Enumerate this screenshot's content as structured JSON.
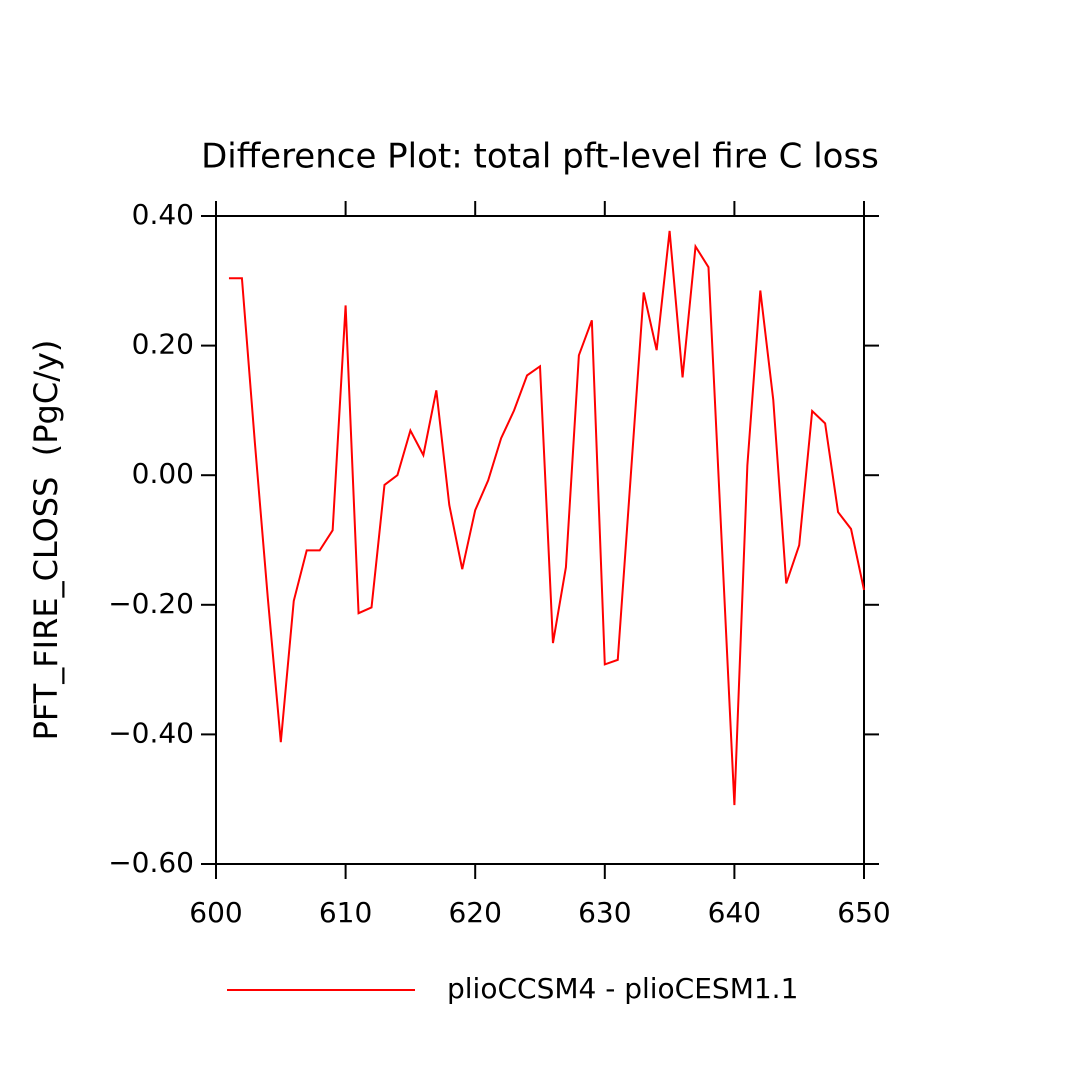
{
  "chart_data": {
    "type": "line",
    "title": "Difference Plot: total pft-level fire C loss",
    "y_label": "PFT_FIRE_CLOSS  (PgC/y)",
    "x": [
      601,
      602,
      603,
      604,
      605,
      606,
      607,
      608,
      609,
      610,
      611,
      612,
      613,
      614,
      615,
      616,
      617,
      618,
      619,
      620,
      621,
      622,
      623,
      624,
      625,
      626,
      627,
      628,
      629,
      630,
      631,
      632,
      633,
      634,
      635,
      636,
      637,
      638,
      639,
      640,
      641,
      642,
      643,
      644,
      645,
      646,
      647,
      648,
      649,
      650
    ],
    "series": [
      {
        "name": "plioCCSM4 - plioCESM1.1",
        "color": "#ff0000",
        "values": [
          0.304,
          0.304,
          0.05,
          -0.19,
          -0.412,
          -0.194,
          -0.116,
          -0.116,
          -0.085,
          0.262,
          -0.213,
          -0.204,
          -0.015,
          0.0,
          0.069,
          0.031,
          0.131,
          -0.046,
          -0.145,
          -0.054,
          -0.008,
          0.057,
          0.1,
          0.154,
          0.168,
          -0.259,
          -0.142,
          0.185,
          0.239,
          -0.292,
          -0.285,
          -0.002,
          0.282,
          0.193,
          0.377,
          0.151,
          0.353,
          0.321,
          -0.094,
          -0.509,
          0.015,
          0.285,
          0.116,
          -0.167,
          -0.108,
          0.099,
          0.08,
          -0.057,
          -0.083,
          -0.177
        ]
      }
    ],
    "xlim": [
      600,
      650
    ],
    "xticks": [
      600,
      610,
      620,
      630,
      640,
      650
    ],
    "ylim": [
      -0.6,
      0.4
    ],
    "yticks": [
      {
        "value": -0.6,
        "label": "−0.60"
      },
      {
        "value": -0.4,
        "label": "−0.40"
      },
      {
        "value": -0.2,
        "label": "−0.20"
      },
      {
        "value": 0,
        "label": "0.00"
      },
      {
        "value": 0.2,
        "label": "0.20"
      },
      {
        "value": 0.4,
        "label": "0.40"
      }
    ],
    "grid": false
  }
}
